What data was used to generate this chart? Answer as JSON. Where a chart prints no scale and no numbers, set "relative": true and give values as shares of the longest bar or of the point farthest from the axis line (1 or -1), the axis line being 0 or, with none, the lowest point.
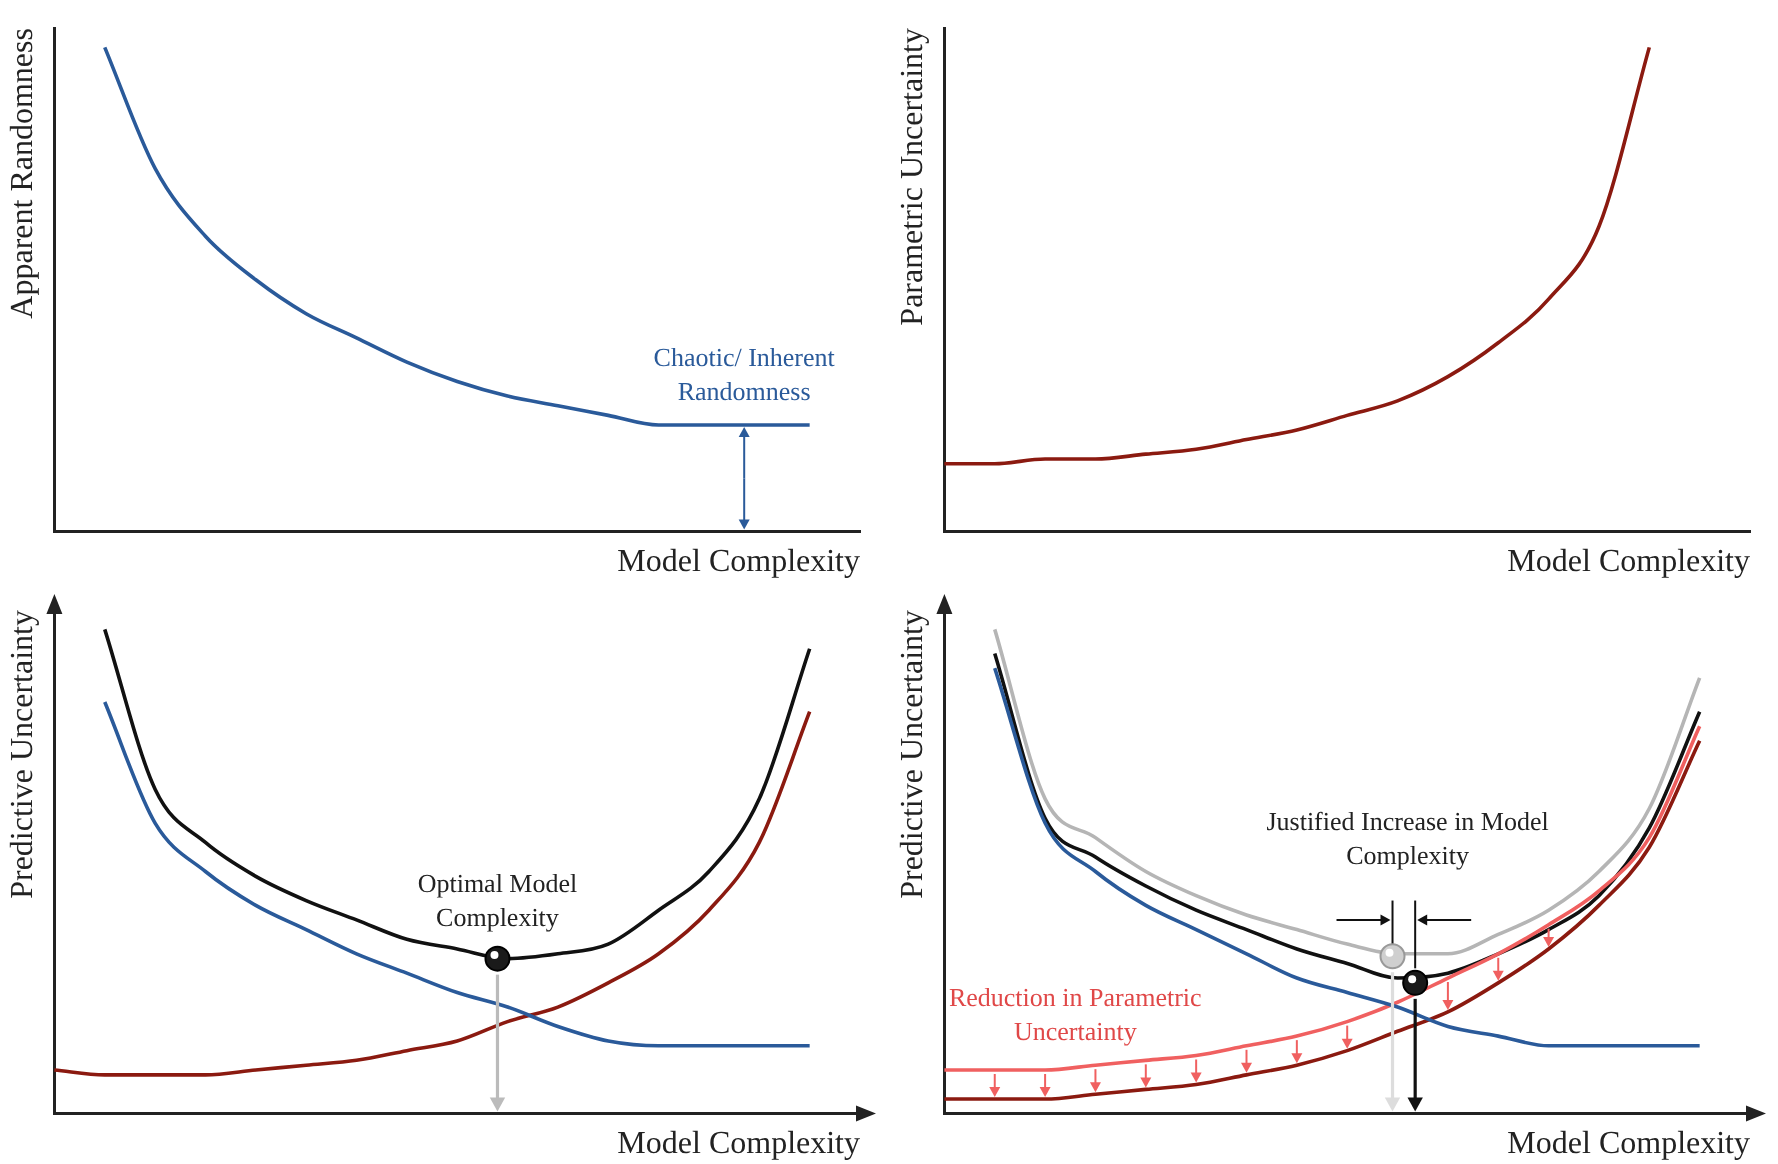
{
  "chart_data": [
    {
      "type": "line",
      "relative": true,
      "tick_labels": false,
      "marker": "none",
      "xlabel": "Model Complexity",
      "ylabel": "Apparent Randomness",
      "categories": [
        null,
        null,
        null,
        null,
        null,
        null,
        null,
        null,
        null,
        null,
        null,
        null,
        null,
        null,
        null,
        null,
        null
      ],
      "series": [
        {
          "color": "#2a5a9a",
          "values": [
            null,
            1,
            0.75,
            0.61,
            0.52,
            0.45,
            0.4,
            0.35,
            0.31,
            0.28,
            0.26,
            0.24,
            0.22,
            0.22,
            0.22,
            0.22,
            null
          ]
        }
      ],
      "annotations": [
        "Chaotic/ Inherent Randomness"
      ]
    },
    {
      "type": "line",
      "relative": true,
      "tick_labels": false,
      "marker": "none",
      "xlabel": "Model Complexity",
      "ylabel": "Parametric Uncertainty",
      "categories": [
        null,
        null,
        null,
        null,
        null,
        null,
        null,
        null,
        null,
        null,
        null,
        null,
        null,
        null,
        null,
        null,
        null
      ],
      "series": [
        {
          "color": "#8b1a10",
          "values": [
            0.14,
            0.14,
            0.15,
            0.15,
            0.16,
            0.17,
            0.19,
            0.21,
            0.24,
            0.27,
            0.32,
            0.39,
            0.48,
            0.63,
            1,
            null,
            null
          ]
        }
      ]
    },
    {
      "type": "line",
      "relative": true,
      "tick_labels": false,
      "marker": "none",
      "xlabel": "Model Complexity",
      "ylabel": "Predictive Uncertainty",
      "categories": [
        null,
        null,
        null,
        null,
        null,
        null,
        null,
        null,
        null,
        null,
        null,
        null,
        null,
        null,
        null,
        null,
        null
      ],
      "series": [
        {
          "color": "#2a5a9a",
          "values": [
            null,
            0.85,
            0.6,
            0.5,
            0.43,
            0.38,
            0.33,
            0.29,
            0.25,
            0.22,
            0.18,
            0.15,
            0.14,
            0.14,
            0.14,
            0.14,
            null
          ]
        },
        {
          "color": "#8b1a10",
          "values": [
            0.09,
            0.08,
            0.08,
            0.08,
            0.09,
            0.1,
            0.11,
            0.13,
            0.15,
            0.19,
            0.22,
            0.27,
            0.33,
            0.42,
            0.56,
            0.83,
            null
          ]
        },
        {
          "color": "#111111",
          "values": [
            null,
            1,
            0.67,
            0.56,
            0.49,
            0.44,
            0.4,
            0.36,
            0.34,
            0.32,
            0.33,
            0.35,
            0.42,
            0.5,
            0.65,
            0.96,
            null
          ]
        }
      ],
      "annotations": [
        "Optimal Model Complexity"
      ]
    },
    {
      "type": "line",
      "relative": true,
      "tick_labels": false,
      "marker": "none",
      "xlabel": "Model Complexity",
      "ylabel": "Predictive Uncertainty",
      "categories": [
        null,
        null,
        null,
        null,
        null,
        null,
        null,
        null,
        null,
        null,
        null,
        null,
        null,
        null,
        null,
        null,
        null
      ],
      "series": [
        {
          "color": "#2a5a9a",
          "values": [
            null,
            0.92,
            0.6,
            0.5,
            0.43,
            0.38,
            0.33,
            0.28,
            0.25,
            0.22,
            0.18,
            0.16,
            0.14,
            0.14,
            0.14,
            0.14,
            null
          ]
        },
        {
          "color": "#8b1a10",
          "values": [
            0.03,
            0.03,
            0.03,
            0.04,
            0.05,
            0.06,
            0.08,
            0.1,
            0.13,
            0.17,
            0.21,
            0.27,
            0.34,
            0.43,
            0.55,
            0.77,
            null
          ]
        },
        {
          "color": "#f06060",
          "values": [
            0.09,
            0.09,
            0.09,
            0.1,
            0.11,
            0.12,
            0.14,
            0.16,
            0.19,
            0.23,
            0.28,
            0.33,
            0.39,
            0.46,
            0.57,
            0.8,
            null
          ]
        },
        {
          "color": "#111111",
          "values": [
            null,
            0.95,
            0.61,
            0.53,
            0.47,
            0.42,
            0.38,
            0.34,
            0.31,
            0.28,
            0.29,
            0.33,
            0.38,
            0.45,
            0.59,
            0.83,
            null
          ]
        },
        {
          "color": "#b5b5b5",
          "values": [
            null,
            1,
            0.65,
            0.57,
            0.5,
            0.45,
            0.41,
            0.38,
            0.35,
            0.33,
            0.33,
            0.37,
            0.42,
            0.5,
            0.63,
            0.9,
            null
          ]
        }
      ],
      "annotations": [
        "Justified Increase in Model Complexity",
        "Reduction in Parametric Uncertainty"
      ]
    }
  ]
}
